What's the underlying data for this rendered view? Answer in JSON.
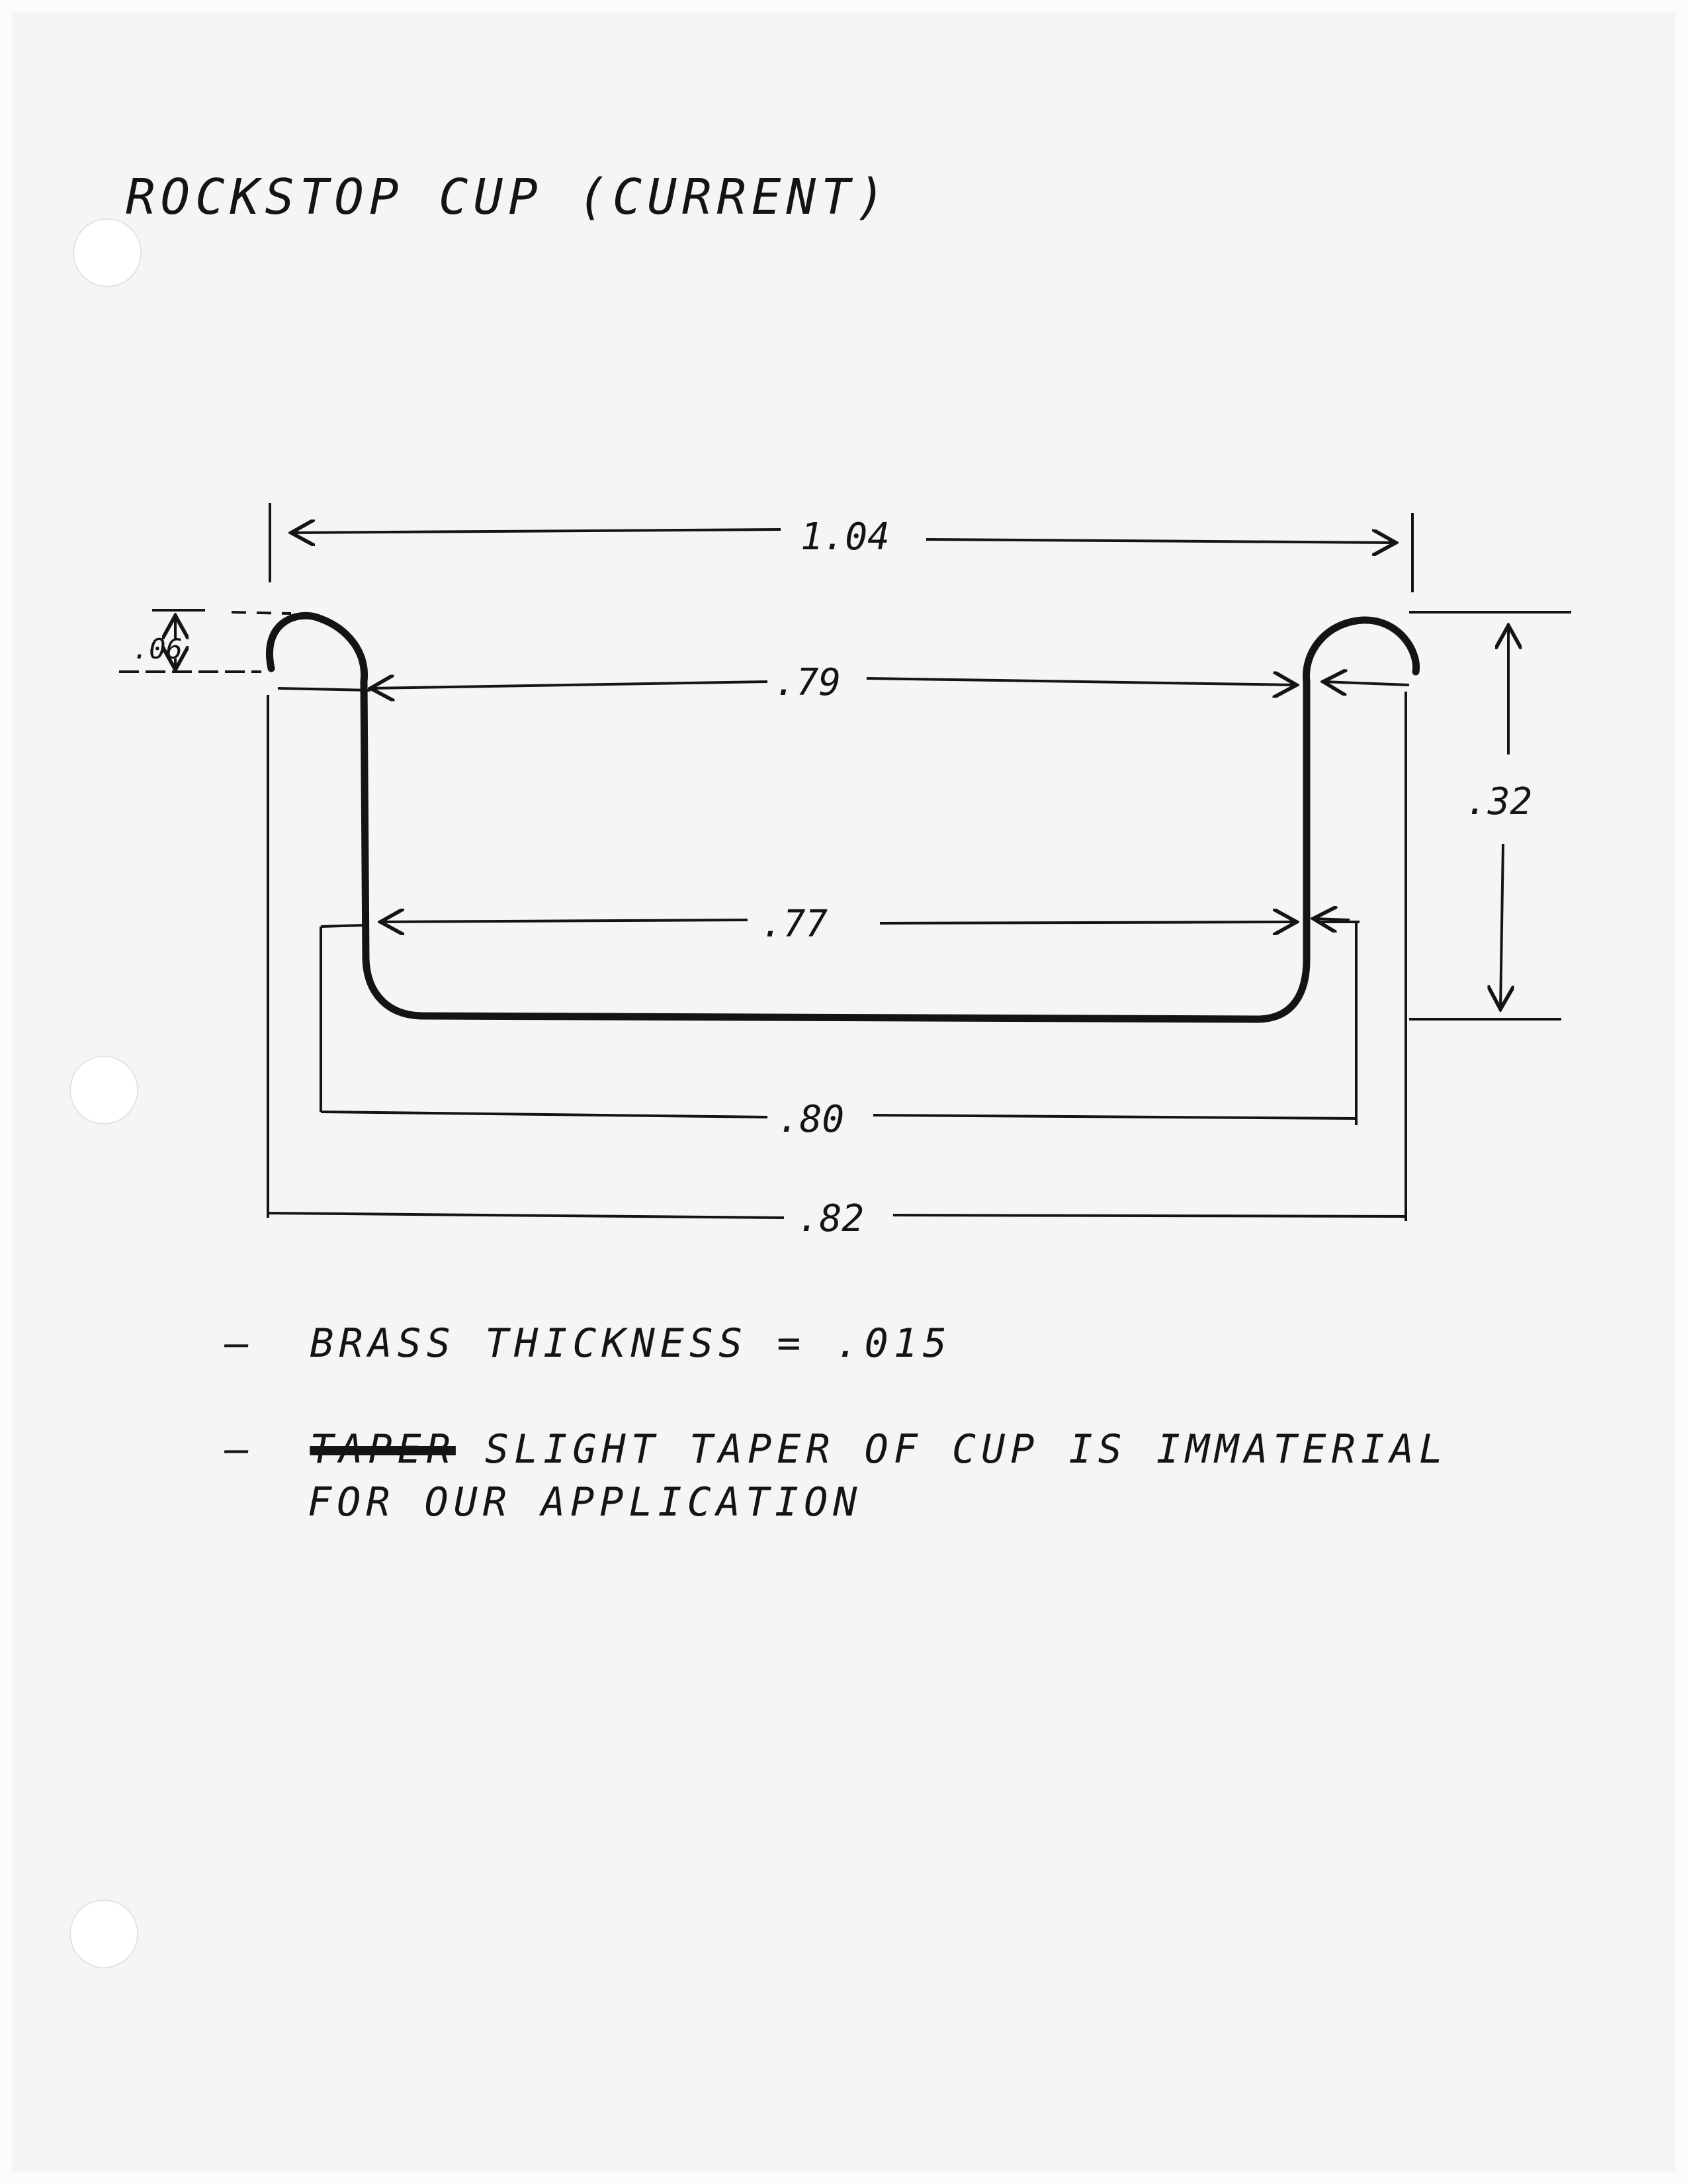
{
  "title": "ROCKSTOP CUP (CURRENT)",
  "dimensions": {
    "overall_top": "1.04",
    "lip": ".06",
    "inner_top": ".79",
    "height": ".32",
    "inner_bottom": ".77",
    "outer_bottom": ".80",
    "base": ".82"
  },
  "notes": {
    "n1_dash": "–",
    "n1_text": "BRASS THICKNESS = .015",
    "n2_dash": "–",
    "n2_struck": "TAPER",
    "n2_text": "SLIGHT TAPER OF CUP IS IMMATERIAL",
    "n2_cont": "FOR OUR APPLICATION"
  }
}
